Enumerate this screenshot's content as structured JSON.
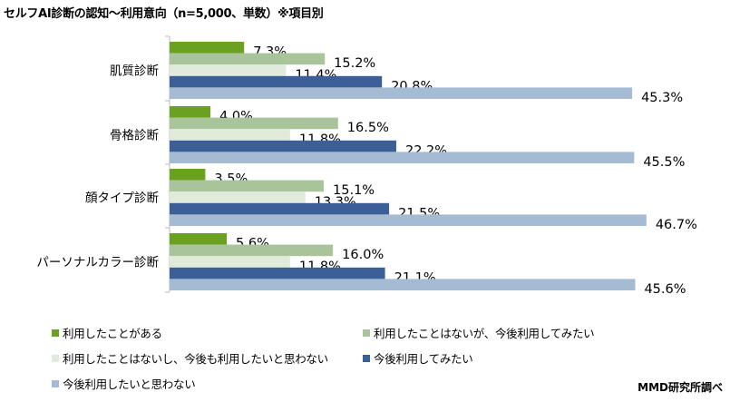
{
  "title": "セルフAI診断の認知～利用意向（n=5,000、単数）※項目別",
  "source": "MMD研究所調べ",
  "chart_data": {
    "type": "bar",
    "orientation": "horizontal",
    "title": "セルフAI診断の認知～利用意向（n=5,000、単数）※項目別",
    "categories": [
      "肌質診断",
      "骨格診断",
      "顔タイプ診断",
      "パーソナルカラー診断"
    ],
    "series": [
      {
        "name": "利用したことがある",
        "color": "#6aa121",
        "values": [
          7.3,
          4.0,
          3.5,
          5.6
        ]
      },
      {
        "name": "利用したことはないが、今後利用してみたい",
        "color": "#a9c49a",
        "values": [
          15.2,
          16.5,
          15.1,
          16.0
        ]
      },
      {
        "name": "利用したことはないし、今後も利用したいと思わない",
        "color": "#e1ebd9",
        "values": [
          11.4,
          11.8,
          13.3,
          11.8
        ]
      },
      {
        "name": "今後利用してみたい",
        "color": "#3b5f96",
        "values": [
          20.8,
          22.2,
          21.5,
          21.1
        ]
      },
      {
        "name": "今後利用したいと思わない",
        "color": "#a5bad3",
        "values": [
          45.3,
          45.5,
          46.7,
          45.6
        ]
      }
    ],
    "value_suffix": "%",
    "xlim": [
      0,
      50
    ],
    "grid": false,
    "legend_position": "bottom"
  }
}
